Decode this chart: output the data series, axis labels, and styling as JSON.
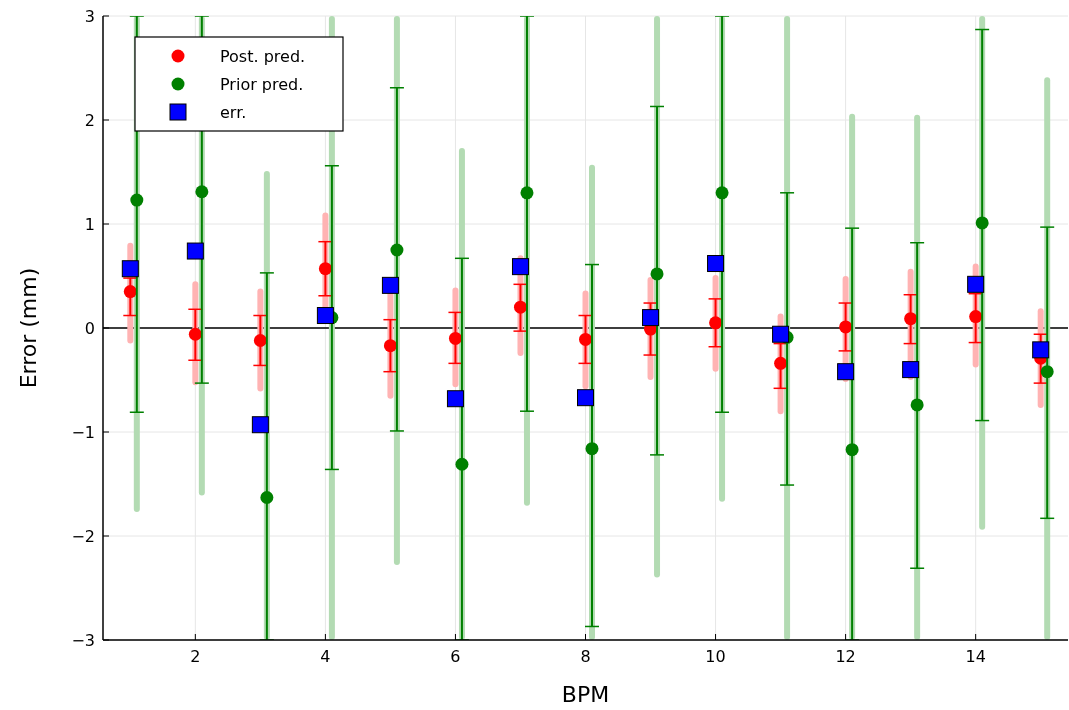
{
  "chart_data": {
    "type": "scatter",
    "xlabel": "BPM",
    "ylabel": "Error (mm)",
    "xlim": [
      0.58,
      15.42
    ],
    "xticks": [
      2,
      4,
      6,
      8,
      10,
      12,
      14
    ],
    "ylim": [
      -3,
      3
    ],
    "yticks": [
      {
        "value": -3,
        "label": "−3"
      },
      {
        "value": -2,
        "label": "−2"
      },
      {
        "value": -1,
        "label": "−1"
      },
      0,
      1,
      2,
      3
    ],
    "grid": true,
    "legend": "top left",
    "ref_lines": [
      {
        "axis": "y",
        "value": 0,
        "color": "#000000"
      }
    ],
    "series": [
      {
        "type": "bar",
        "color": "#ffb3b3",
        "x": [
          1,
          2,
          3,
          4,
          5,
          6,
          7,
          8,
          9,
          10,
          11,
          12,
          13,
          14,
          15
        ],
        "base": [
          -0.15,
          -0.55,
          -0.61,
          0.05,
          -0.68,
          -0.57,
          -0.27,
          -0.59,
          -0.5,
          -0.42,
          -0.83,
          -0.52,
          -0.5,
          -0.38,
          -0.77
        ],
        "values": [
          0.97,
          1,
          0.99,
          1.06,
          1.03,
          0.96,
          0.97,
          0.95,
          0.99,
          0.93,
          0.97,
          1.02,
          1.07,
          1,
          0.96
        ]
      },
      {
        "type": "bar",
        "color": "#b3dbb3",
        "x": [
          1.1,
          2.1,
          3.1,
          4.1,
          5.1,
          6.1,
          7.1,
          8.1,
          9.1,
          10.1,
          11.1,
          12.1,
          13.1,
          14.1,
          15.1
        ],
        "base": [
          -1.77,
          -1.61,
          -3,
          -3,
          -2.28,
          -3,
          -1.71,
          -3,
          -2.4,
          -1.67,
          -3,
          -3,
          -3,
          -1.94,
          -3
        ],
        "values": [
          4.77,
          4.61,
          4.51,
          6,
          5.28,
          4.73,
          4.71,
          4.57,
          5.4,
          4.67,
          6,
          5.06,
          5.05,
          4.94,
          5.41
        ]
      },
      {
        "name": "Post. pred.",
        "color": "#ff0000",
        "marker": "circle",
        "x": [
          1,
          2,
          3,
          4,
          5,
          6,
          7,
          8,
          9,
          10,
          11,
          12,
          13,
          14,
          15
        ],
        "values": [
          0.35,
          -0.06,
          -0.12,
          0.57,
          -0.17,
          -0.1,
          0.2,
          -0.11,
          -0.01,
          0.05,
          -0.34,
          0.01,
          0.09,
          0.11,
          -0.29
        ],
        "errors": [
          [
            0.12,
            0.48
          ],
          [
            -0.31,
            0.18
          ],
          [
            -0.36,
            0.12
          ],
          [
            0.31,
            0.83
          ],
          [
            -0.42,
            0.08
          ],
          [
            -0.34,
            0.15
          ],
          [
            -0.03,
            0.42
          ],
          [
            -0.34,
            0.12
          ],
          [
            -0.26,
            0.24
          ],
          [
            -0.18,
            0.28
          ],
          [
            -0.58,
            -0.15
          ],
          [
            -0.22,
            0.24
          ],
          [
            -0.15,
            0.32
          ],
          [
            -0.14,
            0.33
          ],
          [
            -0.53,
            -0.06
          ]
        ]
      },
      {
        "name": "Prior pred.",
        "color": "#008000",
        "marker": "circle",
        "x": [
          1.1,
          2.1,
          3.1,
          4.1,
          5.1,
          6.1,
          7.1,
          8.1,
          9.1,
          10.1,
          11.1,
          12.1,
          13.1,
          14.1,
          15.1
        ],
        "values": [
          1.23,
          1.31,
          -1.63,
          0.1,
          0.75,
          -1.31,
          1.3,
          -1.16,
          0.52,
          1.3,
          -0.09,
          -1.17,
          -0.74,
          1.01,
          -0.42
        ],
        "errors": [
          [
            -0.81,
            3
          ],
          [
            -0.53,
            3
          ],
          [
            -3,
            0.53
          ],
          [
            -1.36,
            1.56
          ],
          [
            -0.99,
            2.31
          ],
          [
            -3,
            0.67
          ],
          [
            -0.8,
            3
          ],
          [
            -2.87,
            0.61
          ],
          [
            -1.22,
            2.13
          ],
          [
            -0.81,
            3
          ],
          [
            -1.51,
            1.3
          ],
          [
            -3,
            0.96
          ],
          [
            -2.31,
            0.82
          ],
          [
            -0.89,
            2.87
          ],
          [
            -1.83,
            0.97
          ]
        ]
      },
      {
        "name": "err.",
        "color": "#0000ff",
        "marker": "square",
        "x": [
          1,
          2,
          3,
          4,
          5,
          6,
          7,
          8,
          9,
          10,
          11,
          12,
          13,
          14,
          15
        ],
        "values": [
          0.57,
          0.74,
          -0.93,
          0.12,
          0.41,
          -0.68,
          0.59,
          -0.67,
          0.1,
          0.62,
          -0.06,
          -0.42,
          -0.4,
          0.42,
          -0.21
        ]
      }
    ]
  }
}
